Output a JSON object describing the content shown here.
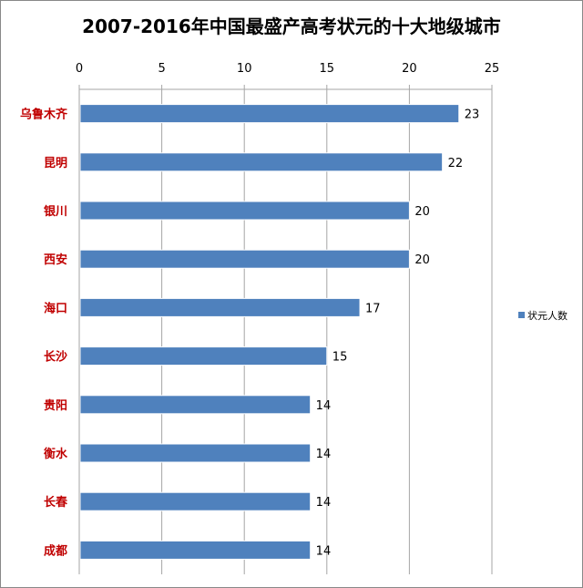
{
  "chart_data": {
    "type": "bar",
    "orientation": "horizontal",
    "title": "2007-2016年中国最盛产高考状元的十大地级城市",
    "categories": [
      "乌鲁木齐",
      "昆明",
      "银川",
      "西安",
      "海口",
      "长沙",
      "贵阳",
      "衡水",
      "长春",
      "成都"
    ],
    "series": [
      {
        "name": "状元人数",
        "values": [
          23,
          22,
          20,
          20,
          17,
          15,
          14,
          14,
          14,
          14
        ],
        "color": "#4f81bd"
      }
    ],
    "xlim": [
      0,
      25
    ],
    "xticks": [
      "0",
      "5",
      "10",
      "15",
      "20",
      "25"
    ],
    "x_axis_position": "top",
    "grid": true,
    "data_labels": true,
    "legend_position": "right",
    "category_label_color": "#c00000"
  }
}
